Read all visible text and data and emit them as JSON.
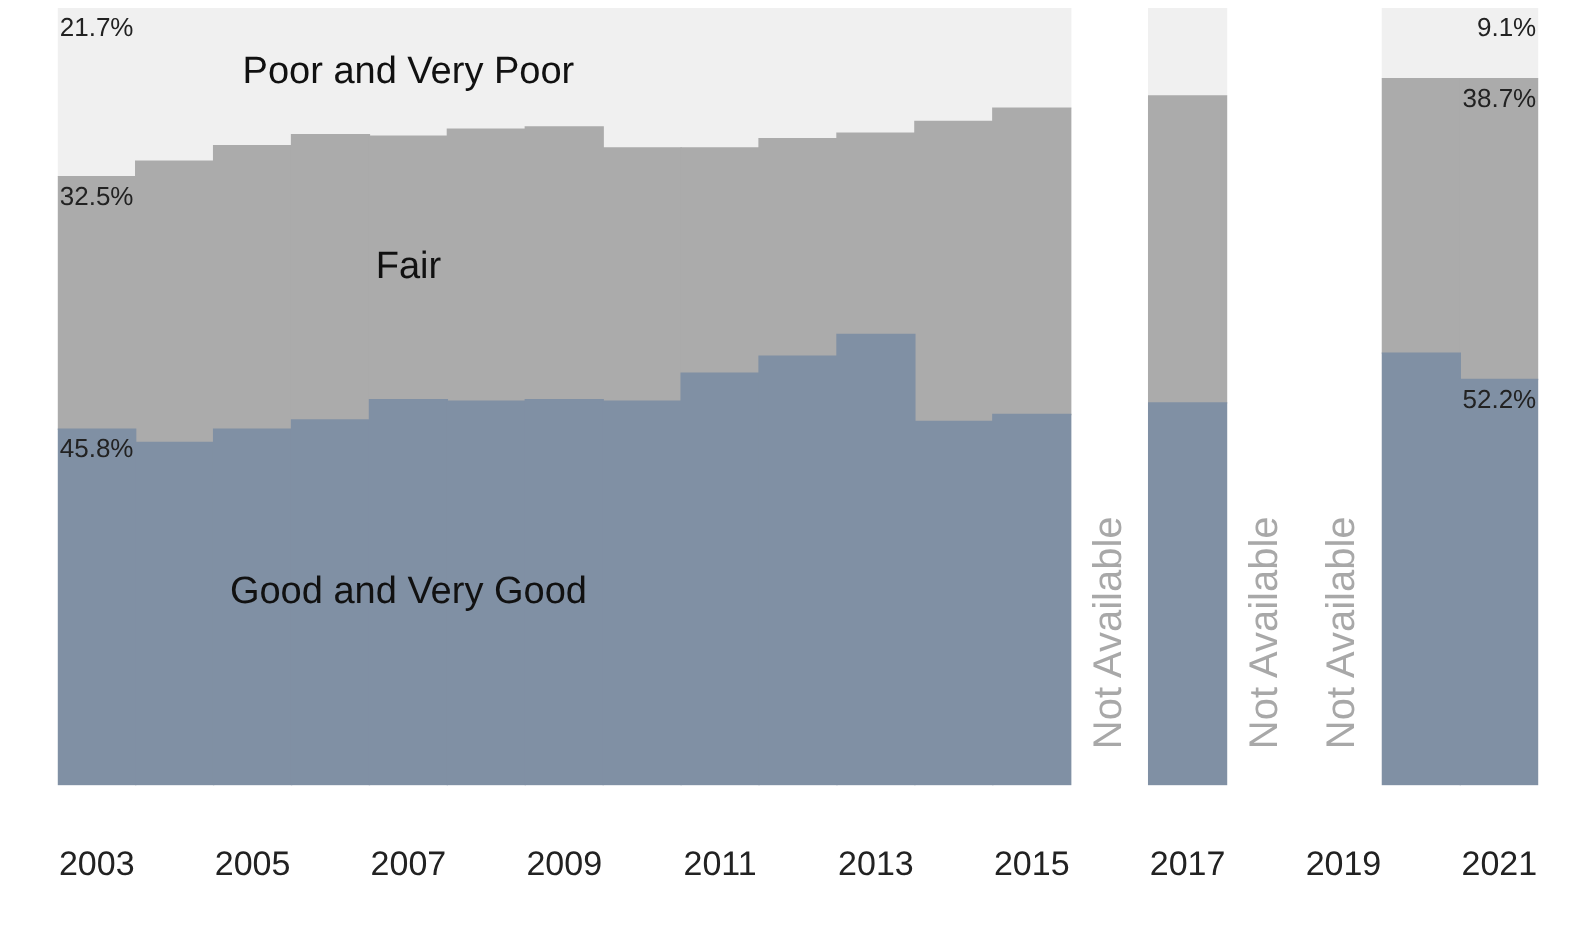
{
  "chart_data": {
    "type": "bar",
    "stacked": true,
    "grid": false,
    "legend": false,
    "tick_labels": "x",
    "ylim": [
      0,
      100
    ],
    "categories": [
      "2003",
      null,
      "2005",
      null,
      "2007",
      null,
      "2009",
      null,
      "2011",
      null,
      "2013",
      null,
      "2015",
      null,
      "2017",
      null,
      "2019",
      null,
      "2021"
    ],
    "series": [
      {
        "name": "Good and Very Good",
        "color": "#8090a4",
        "values": [
          45.8,
          44.1,
          45.8,
          47.0,
          49.6,
          49.4,
          49.6,
          49.4,
          53.0,
          55.2,
          58.0,
          46.8,
          47.7,
          null,
          49.2,
          null,
          null,
          55.6,
          52.2
        ],
        "value_labels": [
          "45.8%",
          null,
          null,
          null,
          null,
          null,
          null,
          null,
          null,
          null,
          null,
          null,
          null,
          null,
          null,
          null,
          null,
          null,
          "52.2%"
        ]
      },
      {
        "name": "Fair",
        "color": "#ababab",
        "values": [
          32.5,
          36.2,
          36.5,
          36.7,
          33.9,
          35.0,
          35.1,
          32.6,
          29.0,
          28.0,
          25.9,
          38.6,
          39.4,
          null,
          39.5,
          null,
          null,
          35.3,
          38.7
        ],
        "value_labels": [
          "32.5%",
          null,
          null,
          null,
          null,
          null,
          null,
          null,
          null,
          null,
          null,
          null,
          null,
          null,
          null,
          null,
          null,
          null,
          "38.7%"
        ]
      },
      {
        "name": "Poor and Very Poor",
        "color": "#f0f0f0",
        "values": [
          21.7,
          19.7,
          17.7,
          16.3,
          16.5,
          15.6,
          15.3,
          18.0,
          18.0,
          16.8,
          16.1,
          14.6,
          12.9,
          null,
          11.3,
          null,
          null,
          9.1,
          9.1
        ],
        "value_labels": [
          "21.7%",
          null,
          null,
          null,
          null,
          null,
          null,
          null,
          null,
          null,
          null,
          null,
          null,
          null,
          null,
          null,
          null,
          null,
          "9.1%"
        ]
      }
    ],
    "annotations": [
      "Not Available",
      "Not Available",
      "Not Available"
    ]
  }
}
